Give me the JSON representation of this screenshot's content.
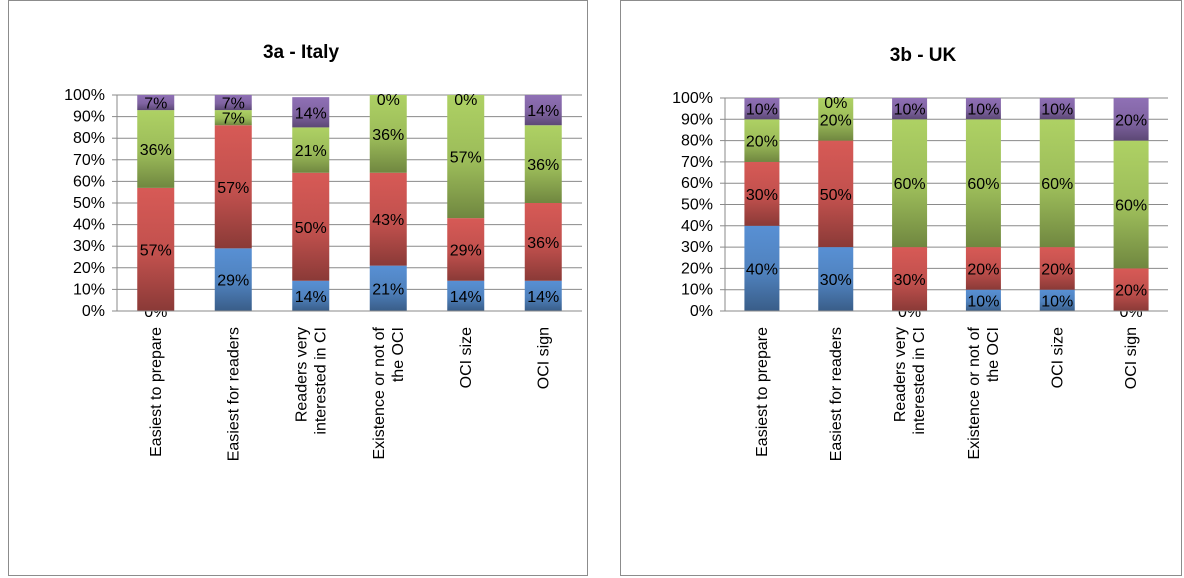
{
  "chart_data": [
    {
      "type": "bar",
      "stacked": true,
      "title": "3a - Italy",
      "categories": [
        "Easiest to prepare",
        "Easiest for readers",
        "Readers very interested in CI",
        "Existence or not of the OCI",
        "OCI size",
        "OCI sign"
      ],
      "series": [
        {
          "values": [
            0,
            29,
            14,
            21,
            14,
            14
          ],
          "labels": [
            "0%",
            "29%",
            "14%",
            "21%",
            "14%",
            "14%"
          ],
          "color": "#4f81bd"
        },
        {
          "values": [
            57,
            57,
            50,
            43,
            29,
            36
          ],
          "labels": [
            "57%",
            "57%",
            "50%",
            "43%",
            "29%",
            "36%"
          ],
          "color": "#c0504d"
        },
        {
          "values": [
            36,
            7,
            21,
            36,
            57,
            36
          ],
          "labels": [
            "36%",
            "7%",
            "21%",
            "36%",
            "57%",
            "36%"
          ],
          "color": "#9bbb59"
        },
        {
          "values": [
            7,
            7,
            14,
            0,
            0,
            14
          ],
          "labels": [
            "7%",
            "7%",
            "14%",
            "0%",
            "0%",
            "14%"
          ],
          "color": "#8064a2"
        }
      ],
      "yticks": [
        "0%",
        "10%",
        "20%",
        "30%",
        "40%",
        "50%",
        "60%",
        "70%",
        "80%",
        "90%",
        "100%"
      ],
      "ylim": [
        0,
        100
      ],
      "grid": true
    },
    {
      "type": "bar",
      "stacked": true,
      "title": "3b - UK",
      "categories": [
        "Easiest to prepare",
        "Easiest for readers",
        "Readers very interested in CI",
        "Existence or not of the OCI",
        "OCI size",
        "OCI sign"
      ],
      "series": [
        {
          "values": [
            40,
            30,
            0,
            10,
            10,
            0
          ],
          "labels": [
            "40%",
            "30%",
            "0%",
            "10%",
            "10%",
            "0%"
          ],
          "color": "#4f81bd"
        },
        {
          "values": [
            30,
            50,
            30,
            20,
            20,
            20
          ],
          "labels": [
            "30%",
            "50%",
            "30%",
            "20%",
            "20%",
            "20%"
          ],
          "color": "#c0504d"
        },
        {
          "values": [
            20,
            20,
            60,
            60,
            60,
            60
          ],
          "labels": [
            "20%",
            "20%",
            "60%",
            "60%",
            "60%",
            "60%"
          ],
          "color": "#9bbb59"
        },
        {
          "values": [
            10,
            0,
            10,
            10,
            10,
            20
          ],
          "labels": [
            "10%",
            "0%",
            "10%",
            "10%",
            "10%",
            "20%"
          ],
          "color": "#8064a2"
        }
      ],
      "yticks": [
        "0%",
        "10%",
        "20%",
        "30%",
        "40%",
        "50%",
        "60%",
        "70%",
        "80%",
        "90%",
        "100%"
      ],
      "ylim": [
        0,
        100
      ],
      "grid": true
    }
  ]
}
